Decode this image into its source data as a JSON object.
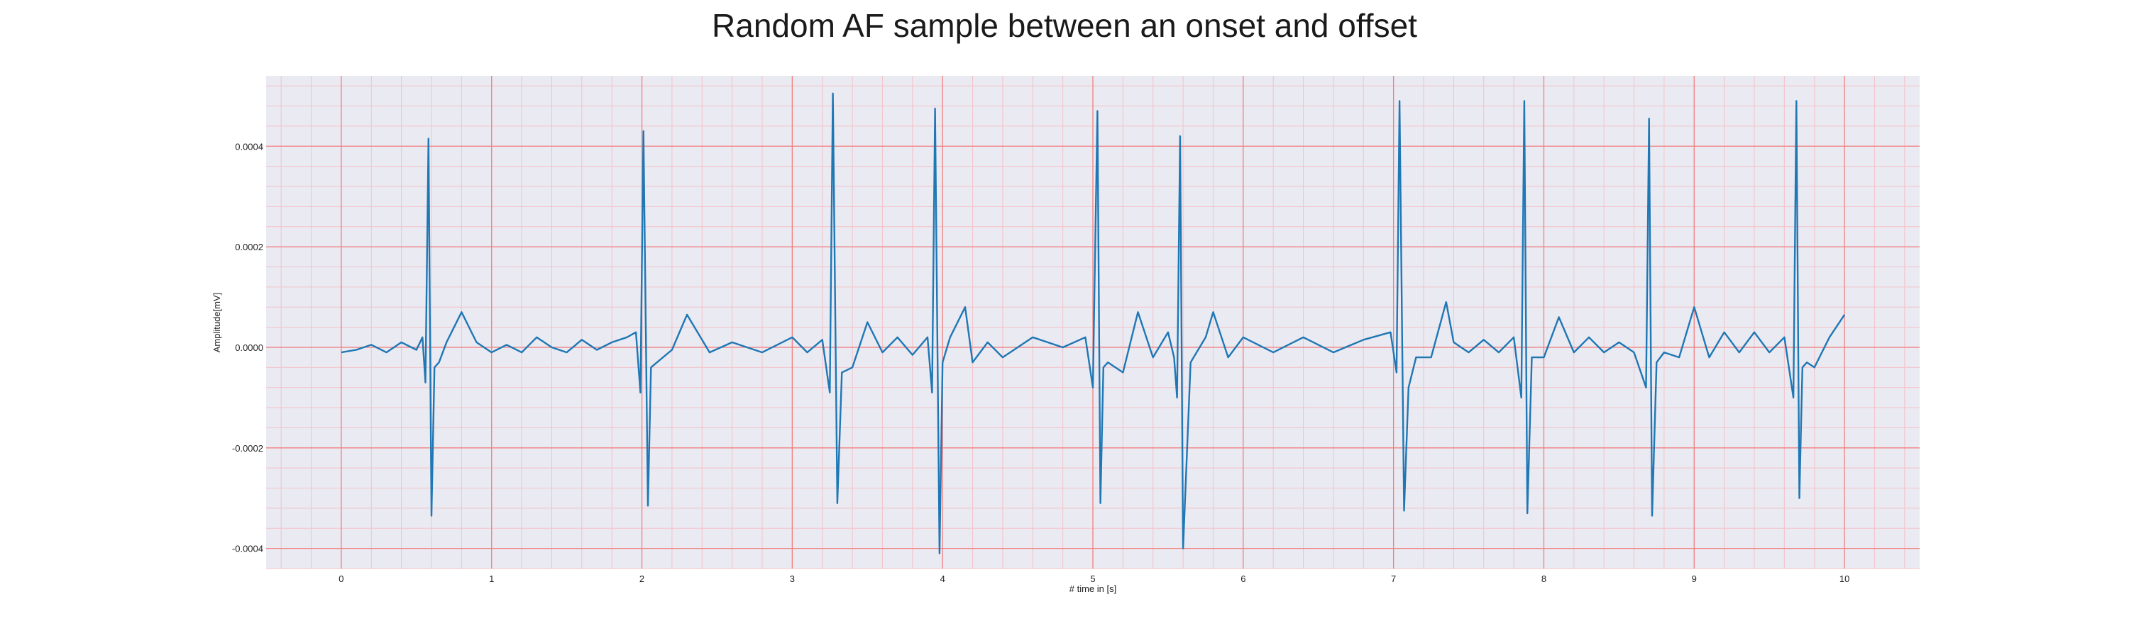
{
  "chart_data": {
    "type": "line",
    "title": "Random AF sample between an onset and offset",
    "xlabel": "# time in [s]",
    "ylabel": "Amplitude[mV]",
    "xlim": [
      -0.5,
      10.5
    ],
    "ylim": [
      -0.00044,
      0.00054
    ],
    "xticks": [
      0,
      1,
      2,
      3,
      4,
      5,
      6,
      7,
      8,
      9,
      10
    ],
    "xtick_labels": [
      "0",
      "1",
      "2",
      "3",
      "4",
      "5",
      "6",
      "7",
      "8",
      "9",
      "10"
    ],
    "yticks": [
      -0.0004,
      -0.0002,
      0.0,
      0.0002,
      0.0004
    ],
    "ytick_labels": [
      "-0.0004",
      "-0.0002",
      "0.0000",
      "0.0002",
      "0.0004"
    ],
    "grid": true,
    "minor_grid": true,
    "legend": "none",
    "colors": {
      "background": "#eaeaf2",
      "major_grid": "#f08080",
      "minor_grid": "#f4c2c8",
      "line": "#1f77b4"
    },
    "series": [
      {
        "values_note_free": true,
        "x": [
          0.0,
          0.1,
          0.2,
          0.3,
          0.4,
          0.5,
          0.54,
          0.56,
          0.58,
          0.6,
          0.62,
          0.65,
          0.7,
          0.8,
          0.9,
          1.0,
          1.1,
          1.2,
          1.3,
          1.4,
          1.5,
          1.6,
          1.7,
          1.8,
          1.9,
          1.96,
          1.99,
          2.01,
          2.04,
          2.06,
          2.1,
          2.2,
          2.3,
          2.35,
          2.45,
          2.6,
          2.8,
          3.0,
          3.1,
          3.2,
          3.25,
          3.27,
          3.3,
          3.33,
          3.4,
          3.5,
          3.6,
          3.7,
          3.8,
          3.9,
          3.93,
          3.95,
          3.98,
          4.0,
          4.05,
          4.15,
          4.2,
          4.3,
          4.4,
          4.6,
          4.8,
          4.95,
          5.0,
          5.03,
          5.05,
          5.07,
          5.1,
          5.2,
          5.3,
          5.4,
          5.5,
          5.54,
          5.56,
          5.58,
          5.6,
          5.65,
          5.75,
          5.8,
          5.9,
          6.0,
          6.2,
          6.4,
          6.6,
          6.8,
          6.98,
          7.02,
          7.04,
          7.07,
          7.1,
          7.15,
          7.25,
          7.35,
          7.4,
          7.5,
          7.6,
          7.7,
          7.8,
          7.85,
          7.87,
          7.89,
          7.92,
          8.0,
          8.1,
          8.2,
          8.3,
          8.4,
          8.5,
          8.6,
          8.68,
          8.7,
          8.72,
          8.75,
          8.8,
          8.9,
          9.0,
          9.1,
          9.2,
          9.3,
          9.4,
          9.5,
          9.6,
          9.66,
          9.68,
          9.7,
          9.72,
          9.75,
          9.8,
          9.9,
          10.0
        ],
        "y": [
          -1e-05,
          -5e-06,
          5e-06,
          -1e-05,
          1e-05,
          -5e-06,
          2e-05,
          -7e-05,
          0.000415,
          -0.000335,
          -4e-05,
          -3e-05,
          1e-05,
          7e-05,
          1e-05,
          -1e-05,
          5e-06,
          -1e-05,
          2e-05,
          0.0,
          -1e-05,
          1.5e-05,
          -5e-06,
          1e-05,
          2e-05,
          3e-05,
          -9e-05,
          0.00043,
          -0.000315,
          -4e-05,
          -3e-05,
          -5e-06,
          6.5e-05,
          4e-05,
          -1e-05,
          1e-05,
          -1e-05,
          2e-05,
          -1e-05,
          1.5e-05,
          -9e-05,
          0.000505,
          -0.00031,
          -5e-05,
          -4e-05,
          5e-05,
          -1e-05,
          2e-05,
          -1.5e-05,
          2e-05,
          -9e-05,
          0.000475,
          -0.00041,
          -3e-05,
          2e-05,
          8e-05,
          -3e-05,
          1e-05,
          -2e-05,
          2e-05,
          0.0,
          2e-05,
          -8e-05,
          0.00047,
          -0.00031,
          -4e-05,
          -3e-05,
          -5e-05,
          7e-05,
          -2e-05,
          3e-05,
          -2e-05,
          -0.0001,
          0.00042,
          -0.0004,
          -3e-05,
          2e-05,
          7e-05,
          -2e-05,
          2e-05,
          -1e-05,
          2e-05,
          -1e-05,
          1.5e-05,
          3e-05,
          -5e-05,
          0.00049,
          -0.000325,
          -8e-05,
          -2e-05,
          -2e-05,
          9e-05,
          1e-05,
          -1e-05,
          1.5e-05,
          -1e-05,
          2e-05,
          -0.0001,
          0.00049,
          -0.00033,
          -2e-05,
          -2e-05,
          6e-05,
          -1e-05,
          2e-05,
          -1e-05,
          1e-05,
          -1e-05,
          -8e-05,
          0.000455,
          -0.000335,
          -3e-05,
          -1e-05,
          -2e-05,
          8e-05,
          -2e-05,
          3e-05,
          -1e-05,
          3e-05,
          -1e-05,
          2e-05,
          -0.0001,
          0.00049,
          -0.0003,
          -4e-05,
          -3e-05,
          -4e-05,
          2e-05,
          6.5e-05
        ]
      }
    ]
  }
}
